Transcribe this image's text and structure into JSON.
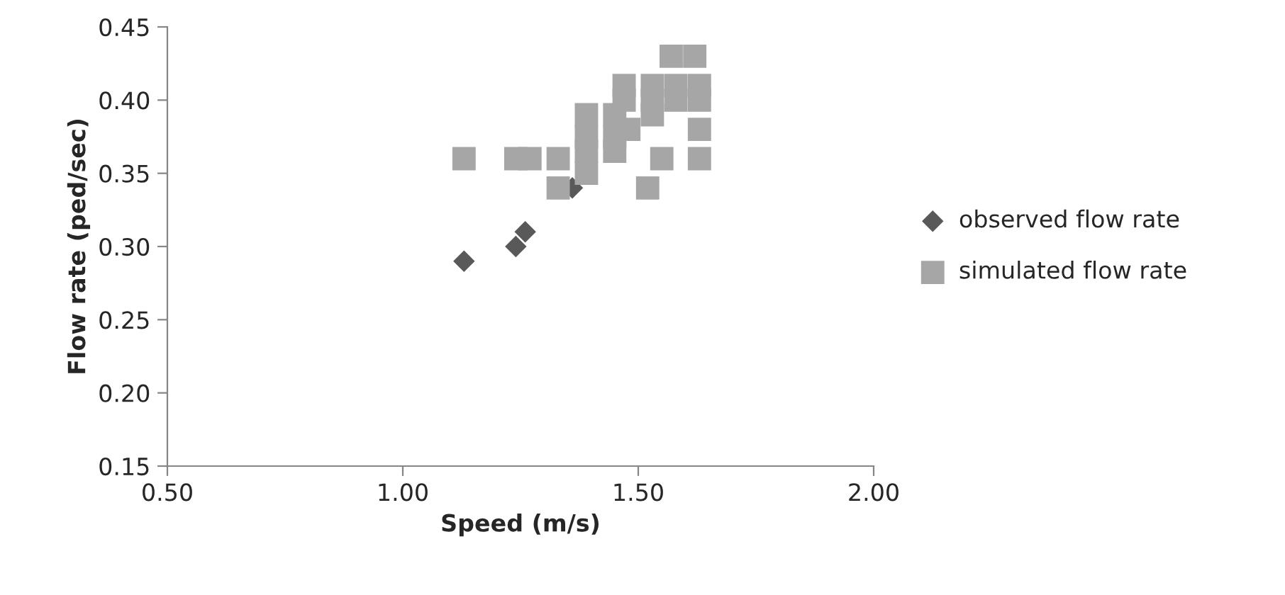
{
  "chart_data": {
    "type": "scatter",
    "xlabel": "Speed (m/s)",
    "ylabel": "Flow rate (ped/sec)",
    "xlim": [
      0.5,
      2.0
    ],
    "xticks": [
      {
        "value": 0.5,
        "label": "0.50"
      },
      {
        "value": 1.0,
        "label": "1.00"
      },
      {
        "value": 1.5,
        "label": "1.50"
      },
      {
        "value": 2.0,
        "label": "2.00"
      }
    ],
    "ylim": [
      0.15,
      0.45
    ],
    "yticks": [
      {
        "value": 0.15,
        "label": "0.15"
      },
      {
        "value": 0.2,
        "label": "0.20"
      },
      {
        "value": 0.25,
        "label": "0.25"
      },
      {
        "value": 0.3,
        "label": "0.30"
      },
      {
        "value": 0.35,
        "label": "0.35"
      },
      {
        "value": 0.4,
        "label": "0.40"
      },
      {
        "value": 0.45,
        "label": "0.45"
      }
    ],
    "grid": false,
    "legend": "right",
    "series": [
      {
        "name": "observed flow rate",
        "color": "#595959",
        "marker": "diamond",
        "x": [
          1.13,
          1.24,
          1.26,
          1.36
        ],
        "values": [
          0.29,
          0.3,
          0.31,
          0.34
        ]
      },
      {
        "name": "simulated flow rate",
        "color": "#a6a6a6",
        "marker": "square",
        "x": [
          1.13,
          1.24,
          1.27,
          1.33,
          1.33,
          1.39,
          1.39,
          1.45,
          1.39,
          1.45,
          1.48,
          1.39,
          1.45,
          1.53,
          1.47,
          1.53,
          1.58,
          1.63,
          1.47,
          1.53,
          1.58,
          1.63,
          1.63,
          1.55,
          1.63,
          1.52,
          1.57,
          1.62
        ],
        "values": [
          0.36,
          0.36,
          0.36,
          0.36,
          0.34,
          0.35,
          0.365,
          0.365,
          0.375,
          0.375,
          0.38,
          0.39,
          0.39,
          0.39,
          0.4,
          0.4,
          0.4,
          0.4,
          0.41,
          0.41,
          0.41,
          0.41,
          0.38,
          0.36,
          0.36,
          0.34,
          0.43,
          0.43
        ]
      }
    ]
  }
}
